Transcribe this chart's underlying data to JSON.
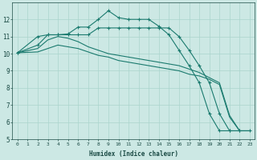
{
  "xlabel": "Humidex (Indice chaleur)",
  "bg_color": "#cce8e4",
  "line_color": "#1a7a6e",
  "grid_color": "#aad4cc",
  "xlim": [
    -0.5,
    23.5
  ],
  "ylim": [
    5,
    13
  ],
  "yticks": [
    5,
    6,
    7,
    8,
    9,
    10,
    11,
    12
  ],
  "xticks": [
    0,
    1,
    2,
    3,
    4,
    5,
    6,
    7,
    8,
    9,
    10,
    11,
    12,
    13,
    14,
    15,
    16,
    17,
    18,
    19,
    20,
    21,
    22,
    23
  ],
  "line_peak": {
    "x": [
      0,
      2,
      3,
      4,
      5,
      6,
      7,
      8,
      9,
      10,
      11,
      12,
      13,
      14,
      15,
      16,
      17,
      18,
      19,
      20,
      21,
      22,
      23
    ],
    "y": [
      10.05,
      10.5,
      11.1,
      11.1,
      11.15,
      11.55,
      11.55,
      12.0,
      12.5,
      12.1,
      12.0,
      12.0,
      12.0,
      11.6,
      11.1,
      10.2,
      9.3,
      8.3,
      6.5,
      5.5,
      5.5,
      5.5,
      5.5
    ]
  },
  "line_mid_marker": {
    "x": [
      0,
      2,
      3,
      4,
      5,
      6,
      7,
      8,
      9,
      10,
      11,
      12,
      13,
      14,
      15,
      16,
      17,
      18,
      19,
      20,
      21,
      22
    ],
    "y": [
      10.05,
      11.0,
      11.1,
      11.1,
      11.1,
      11.1,
      11.1,
      11.5,
      11.5,
      11.5,
      11.5,
      11.5,
      11.5,
      11.5,
      11.5,
      11.0,
      10.2,
      9.3,
      8.3,
      6.5,
      5.5,
      5.5
    ]
  },
  "line_flat1": {
    "x": [
      0,
      2,
      3,
      4,
      5,
      6,
      7,
      8,
      9,
      10,
      11,
      12,
      13,
      14,
      15,
      16,
      17,
      18,
      19,
      20,
      21,
      22,
      23
    ],
    "y": [
      10.05,
      10.3,
      10.8,
      11.0,
      10.9,
      10.7,
      10.4,
      10.2,
      10.0,
      9.9,
      9.8,
      9.7,
      9.6,
      9.5,
      9.4,
      9.3,
      9.1,
      8.9,
      8.6,
      8.3,
      6.4,
      5.5,
      5.5
    ]
  },
  "line_flat2": {
    "x": [
      0,
      2,
      3,
      4,
      5,
      6,
      7,
      8,
      9,
      10,
      11,
      12,
      13,
      14,
      15,
      16,
      17,
      18,
      19,
      20,
      21,
      22,
      23
    ],
    "y": [
      10.05,
      10.1,
      10.3,
      10.5,
      10.4,
      10.3,
      10.1,
      9.9,
      9.8,
      9.6,
      9.5,
      9.4,
      9.3,
      9.2,
      9.1,
      9.0,
      8.8,
      8.7,
      8.5,
      8.2,
      6.3,
      5.5,
      5.5
    ]
  }
}
